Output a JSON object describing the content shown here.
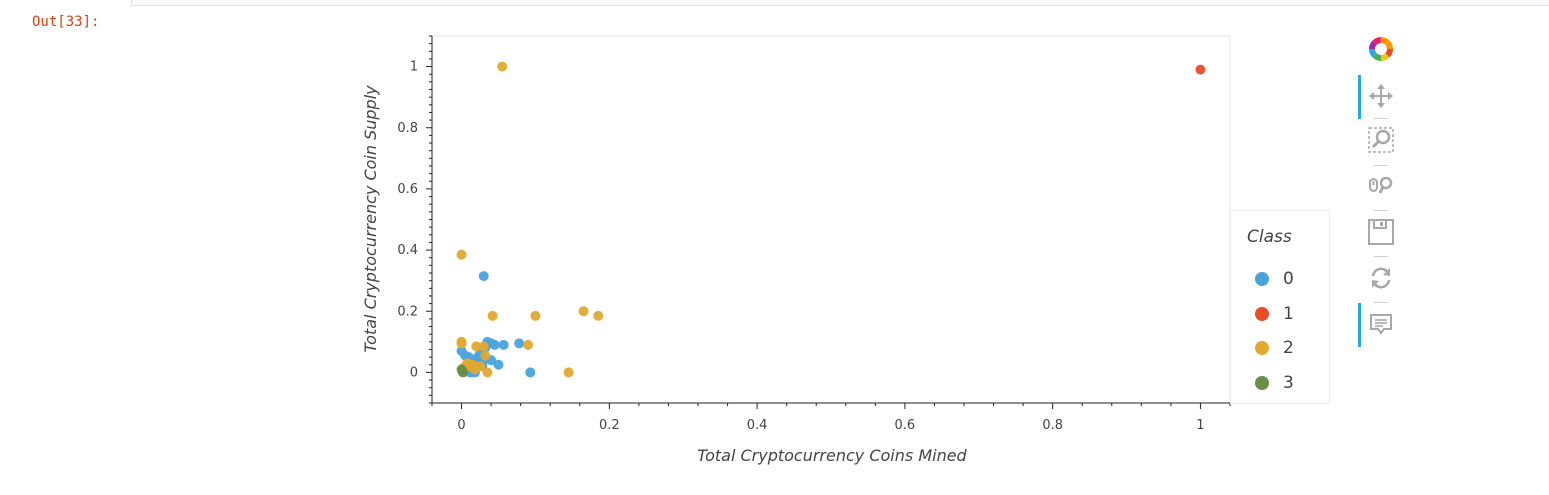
{
  "cell": {
    "prompt": "Out[33]:"
  },
  "toolbar": {
    "tools": [
      {
        "name": "bokeh-logo-icon",
        "active": false
      },
      {
        "name": "pan-icon",
        "active": true
      },
      {
        "name": "box-zoom-icon",
        "active": false
      },
      {
        "name": "wheel-zoom-icon",
        "active": false
      },
      {
        "name": "save-icon",
        "active": false
      },
      {
        "name": "reset-icon",
        "active": false
      },
      {
        "name": "hover-icon",
        "active": true
      }
    ]
  },
  "chart_data": {
    "type": "scatter",
    "xlabel": "Total Cryptocurrency Coins Mined",
    "ylabel": "Total Cryptocurrency Coin Supply",
    "xlim": [
      -0.04,
      1.04
    ],
    "ylim": [
      -0.1,
      1.1
    ],
    "xticks": [
      "0",
      "0.2",
      "0.4",
      "0.6",
      "0.8",
      "1"
    ],
    "yticks": [
      "0",
      "0.2",
      "0.4",
      "0.6",
      "0.8",
      "1"
    ],
    "grid": false,
    "legend": {
      "title": "Class",
      "placement": "right",
      "entries": [
        "0",
        "1",
        "2",
        "3"
      ]
    },
    "colors": {
      "0": "#4aa3dd",
      "1": "#e84d2a",
      "2": "#e2a930",
      "3": "#6b8e46"
    },
    "series": [
      {
        "name": "0",
        "points": [
          [
            0.0,
            0.07
          ],
          [
            0.005,
            0.055
          ],
          [
            0.01,
            0.05
          ],
          [
            0.012,
            0.02
          ],
          [
            0.015,
            0.01
          ],
          [
            0.018,
            0.0
          ],
          [
            0.02,
            0.03
          ],
          [
            0.022,
            0.05
          ],
          [
            0.025,
            0.06
          ],
          [
            0.03,
            0.04
          ],
          [
            0.032,
            0.08
          ],
          [
            0.035,
            0.1
          ],
          [
            0.04,
            0.095
          ],
          [
            0.04,
            0.04
          ],
          [
            0.045,
            0.09
          ],
          [
            0.05,
            0.025
          ],
          [
            0.057,
            0.09
          ],
          [
            0.078,
            0.095
          ],
          [
            0.093,
            0.0
          ],
          [
            0.03,
            0.315
          ],
          [
            0.012,
            0.0
          ],
          [
            0.028,
            0.02
          ]
        ]
      },
      {
        "name": "1",
        "points": [
          [
            1.0,
            0.99
          ]
        ]
      },
      {
        "name": "2",
        "points": [
          [
            0.055,
            1.0
          ],
          [
            0.0,
            0.385
          ],
          [
            0.0,
            0.1
          ],
          [
            0.0,
            0.095
          ],
          [
            0.005,
            0.02
          ],
          [
            0.008,
            0.03
          ],
          [
            0.015,
            0.025
          ],
          [
            0.02,
            0.085
          ],
          [
            0.025,
            0.02
          ],
          [
            0.03,
            0.085
          ],
          [
            0.032,
            0.055
          ],
          [
            0.035,
            0.0
          ],
          [
            0.042,
            0.185
          ],
          [
            0.09,
            0.09
          ],
          [
            0.1,
            0.185
          ],
          [
            0.145,
            0.0
          ],
          [
            0.165,
            0.2
          ],
          [
            0.185,
            0.185
          ],
          [
            0.018,
            0.01
          ],
          [
            0.01,
            0.02
          ]
        ]
      },
      {
        "name": "3",
        "points": [
          [
            0.0,
            0.01
          ],
          [
            0.001,
            0.005
          ],
          [
            0.002,
            0.0
          ]
        ]
      }
    ]
  }
}
